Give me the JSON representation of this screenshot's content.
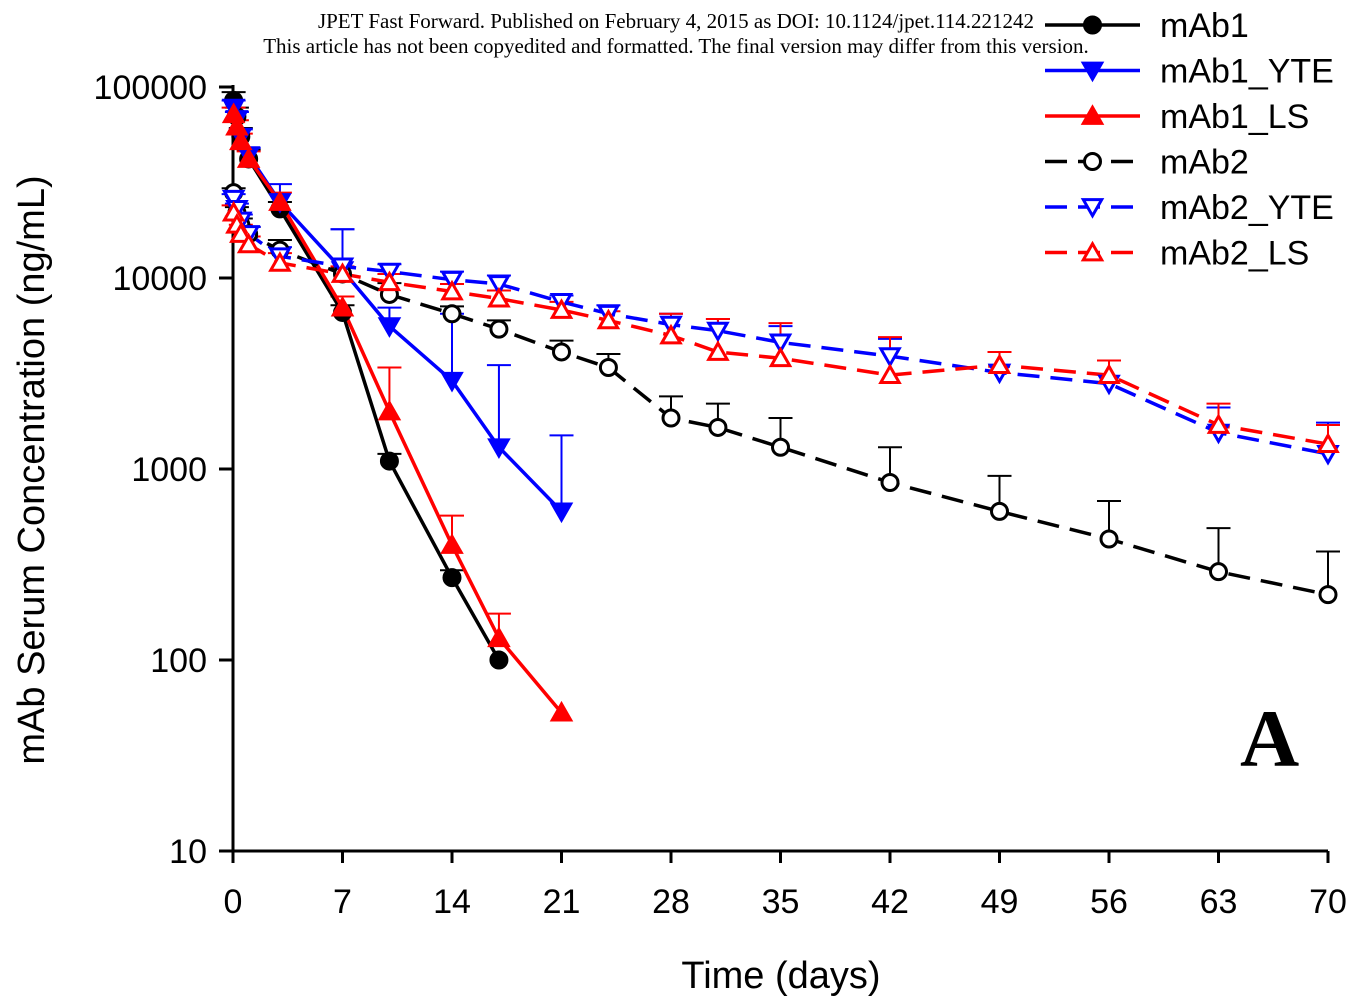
{
  "header": {
    "line1": "JPET Fast Forward. Published on February 4, 2015 as DOI: 10.1124/jpet.114.221242",
    "line2": "This article has not been copyedited and formatted. The final version may differ from this version."
  },
  "panel_label": "A",
  "chart_data": {
    "type": "line",
    "xlabel": "Time (days)",
    "ylabel": "mAb Serum Concentration (ng/mL)",
    "xlim": [
      0,
      70
    ],
    "ylim": [
      10,
      100000
    ],
    "yscale": "log",
    "x_ticks": [
      0,
      7,
      14,
      21,
      28,
      35,
      42,
      49,
      56,
      63,
      70
    ],
    "x_tick_labels": [
      "0",
      "7",
      "14",
      "21",
      "28",
      "35",
      "42",
      "49",
      "56",
      "63",
      "70"
    ],
    "y_ticks": [
      10,
      100,
      1000,
      10000,
      100000
    ],
    "y_tick_labels": [
      "10",
      "100",
      "1000",
      "10000",
      "100000"
    ],
    "grid": false,
    "legend_position": "top-right",
    "series": [
      {
        "name": "mAb1",
        "color": "#000000",
        "dash": "solid",
        "marker": "circle",
        "filled": true,
        "x": [
          0.04,
          0.25,
          0.5,
          1,
          3,
          7,
          10,
          14,
          17
        ],
        "y": [
          85000,
          70000,
          55000,
          42000,
          23000,
          6600,
          1100,
          270,
          100
        ],
        "err": [
          9000,
          8000,
          6000,
          5000,
          2000,
          600,
          100,
          25,
          0
        ]
      },
      {
        "name": "mAb1_YTE",
        "color": "#0000ff",
        "dash": "solid",
        "marker": "triangle-down",
        "filled": true,
        "x": [
          0.04,
          0.25,
          0.5,
          1,
          3,
          7,
          10,
          14,
          17,
          21
        ],
        "y": [
          78000,
          68000,
          55000,
          44000,
          25000,
          11000,
          5600,
          2900,
          1300,
          600
        ],
        "err": [
          7000,
          6000,
          5000,
          4000,
          6000,
          7000,
          1400,
          3600,
          2200,
          900
        ]
      },
      {
        "name": "mAb1_LS",
        "color": "#ff0000",
        "dash": "solid",
        "marker": "triangle-up",
        "filled": true,
        "x": [
          0.04,
          0.25,
          0.5,
          1,
          3,
          7,
          10,
          14,
          17,
          21
        ],
        "y": [
          72000,
          62000,
          52000,
          42000,
          25000,
          7000,
          2000,
          400,
          130,
          53
        ],
        "err": [
          6000,
          5000,
          5000,
          4000,
          3000,
          1000,
          1400,
          170,
          45,
          0
        ]
      },
      {
        "name": "mAb2",
        "color": "#000000",
        "dash": "dashed",
        "marker": "circle",
        "filled": false,
        "x": [
          0.04,
          0.25,
          0.5,
          1,
          3,
          7,
          10,
          14,
          17,
          21,
          24,
          28,
          31,
          35,
          42,
          49,
          56,
          63,
          70
        ],
        "y": [
          28000,
          22000,
          19000,
          17000,
          14000,
          10500,
          8200,
          6500,
          5400,
          4100,
          3400,
          1850,
          1650,
          1300,
          850,
          600,
          430,
          290,
          220
        ],
        "err": [
          1500,
          1500,
          1500,
          1500,
          1800,
          800,
          1200,
          600,
          600,
          600,
          600,
          550,
          550,
          550,
          450,
          320,
          250,
          200,
          150
        ]
      },
      {
        "name": "mAb2_YTE",
        "color": "#0000ff",
        "dash": "dashed",
        "marker": "triangle-down",
        "filled": false,
        "x": [
          0.04,
          0.25,
          0.5,
          1,
          3,
          7,
          10,
          14,
          17,
          21,
          24,
          28,
          31,
          35,
          42,
          49,
          56,
          63,
          70
        ],
        "y": [
          26000,
          23000,
          20000,
          17000,
          13000,
          11500,
          10800,
          9800,
          9300,
          7500,
          6500,
          5700,
          5300,
          4600,
          3900,
          3200,
          2800,
          1550,
          1200
        ],
        "err": [
          1500,
          1500,
          1500,
          1500,
          1500,
          6500,
          1000,
          1000,
          1000,
          600,
          700,
          800,
          800,
          1000,
          900,
          900,
          900,
          550,
          550
        ]
      },
      {
        "name": "mAb2_LS",
        "color": "#ff0000",
        "dash": "dashed",
        "marker": "triangle-up",
        "filled": false,
        "x": [
          0.04,
          0.25,
          0.5,
          1,
          3,
          7,
          10,
          14,
          17,
          21,
          24,
          28,
          31,
          35,
          42,
          49,
          56,
          63,
          70
        ],
        "y": [
          22000,
          19000,
          17000,
          15000,
          12000,
          10500,
          9500,
          8500,
          7800,
          6800,
          6000,
          5000,
          4100,
          3800,
          3100,
          3500,
          3100,
          1700,
          1350
        ],
        "err": [
          2000,
          2000,
          2000,
          1500,
          1500,
          1000,
          1000,
          800,
          800,
          700,
          700,
          1500,
          2000,
          2000,
          1800,
          600,
          600,
          500,
          350
        ]
      }
    ]
  }
}
